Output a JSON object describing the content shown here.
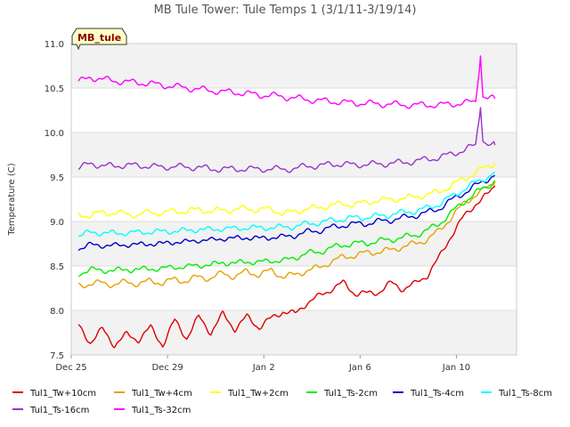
{
  "chart_data": {
    "type": "line",
    "title": "MB Tule Tower: Tule Temps 1 (3/1/11-3/19/14)",
    "ylabel": "Temperature (C)",
    "xlabel": "",
    "badge": "MB_tule",
    "ylim": [
      7.5,
      11.0
    ],
    "yticks": [
      7.5,
      8.0,
      8.5,
      9.0,
      9.5,
      10.0,
      10.5,
      11.0
    ],
    "ytick_labels": [
      "7.5",
      "8.0",
      "8.5",
      "9.0",
      "9.5",
      "10.0",
      "10.5",
      "11.0"
    ],
    "xlim_days": [
      0,
      18.5
    ],
    "xticks": [
      {
        "day": 0,
        "label": "Dec 25"
      },
      {
        "day": 4,
        "label": "Dec 29"
      },
      {
        "day": 8,
        "label": "Jan 2"
      },
      {
        "day": 12,
        "label": "Jan 6"
      },
      {
        "day": 16,
        "label": "Jan 10"
      }
    ],
    "grid": true,
    "legend_position": "bottom",
    "series": [
      {
        "name": "Tul1_Tw+10cm",
        "color": "#dd0000",
        "x": [
          0.3,
          0.8,
          1.3,
          1.8,
          2.3,
          2.8,
          3.3,
          3.8,
          4.3,
          4.8,
          5.3,
          5.8,
          6.3,
          6.8,
          7.3,
          7.8,
          8.3,
          8.8,
          9.3,
          9.8,
          10.3,
          10.8,
          11.3,
          11.8,
          12.3,
          12.8,
          13.3,
          13.8,
          14.3,
          14.8,
          15.3,
          15.8,
          16.3,
          16.8,
          17.3,
          17.6
        ],
        "y": [
          7.82,
          7.65,
          7.78,
          7.62,
          7.72,
          7.68,
          7.8,
          7.62,
          7.88,
          7.7,
          7.92,
          7.76,
          7.95,
          7.8,
          7.92,
          7.82,
          7.9,
          8.0,
          7.95,
          8.1,
          8.15,
          8.25,
          8.3,
          8.2,
          8.18,
          8.22,
          8.3,
          8.25,
          8.3,
          8.4,
          8.6,
          8.85,
          9.05,
          9.2,
          9.3,
          9.4
        ]
      },
      {
        "name": "Tul1_Tw+4cm",
        "color": "#e8a000",
        "x": [
          0.3,
          0.8,
          1.3,
          1.8,
          2.3,
          2.8,
          3.3,
          3.8,
          4.3,
          4.8,
          5.3,
          5.8,
          6.3,
          6.8,
          7.3,
          7.8,
          8.3,
          8.8,
          9.3,
          9.8,
          10.3,
          10.8,
          11.3,
          11.8,
          12.3,
          12.8,
          13.3,
          13.8,
          14.3,
          14.8,
          15.3,
          15.8,
          16.3,
          16.8,
          17.3,
          17.6
        ],
        "y": [
          8.28,
          8.3,
          8.31,
          8.29,
          8.32,
          8.3,
          8.33,
          8.31,
          8.35,
          8.33,
          8.38,
          8.36,
          8.42,
          8.38,
          8.44,
          8.4,
          8.45,
          8.38,
          8.4,
          8.45,
          8.48,
          8.55,
          8.6,
          8.62,
          8.65,
          8.66,
          8.68,
          8.72,
          8.75,
          8.8,
          8.9,
          9.05,
          9.2,
          9.3,
          9.38,
          9.45
        ]
      },
      {
        "name": "Tul1_Tw+2cm",
        "color": "#ffff00",
        "x": [
          0.3,
          0.8,
          1.3,
          1.8,
          2.3,
          2.8,
          3.3,
          3.8,
          4.3,
          4.8,
          5.3,
          5.8,
          6.3,
          6.8,
          7.3,
          7.8,
          8.3,
          8.8,
          9.3,
          9.8,
          10.3,
          10.8,
          11.3,
          11.8,
          12.3,
          12.8,
          13.3,
          13.8,
          14.3,
          14.8,
          15.3,
          15.8,
          16.3,
          16.8,
          17.3,
          17.6
        ],
        "y": [
          9.1,
          9.05,
          9.12,
          9.08,
          9.1,
          9.06,
          9.12,
          9.08,
          9.13,
          9.1,
          9.15,
          9.1,
          9.14,
          9.12,
          9.16,
          9.12,
          9.15,
          9.08,
          9.12,
          9.14,
          9.16,
          9.18,
          9.2,
          9.19,
          9.22,
          9.24,
          9.25,
          9.26,
          9.28,
          9.3,
          9.34,
          9.4,
          9.48,
          9.55,
          9.62,
          9.66
        ]
      },
      {
        "name": "Tul1_Ts-2cm",
        "color": "#00ee00",
        "x": [
          0.3,
          0.8,
          1.3,
          1.8,
          2.3,
          2.8,
          3.3,
          3.8,
          4.3,
          4.8,
          5.3,
          5.8,
          6.3,
          6.8,
          7.3,
          7.8,
          8.3,
          8.8,
          9.3,
          9.8,
          10.3,
          10.8,
          11.3,
          11.8,
          12.3,
          12.8,
          13.3,
          13.8,
          14.3,
          14.8,
          15.3,
          15.8,
          16.3,
          16.8,
          17.3,
          17.6
        ],
        "y": [
          8.42,
          8.45,
          8.46,
          8.44,
          8.47,
          8.45,
          8.48,
          8.46,
          8.5,
          8.48,
          8.52,
          8.5,
          8.55,
          8.52,
          8.56,
          8.53,
          8.57,
          8.55,
          8.6,
          8.64,
          8.66,
          8.7,
          8.74,
          8.75,
          8.76,
          8.78,
          8.8,
          8.82,
          8.85,
          8.9,
          8.98,
          9.1,
          9.22,
          9.32,
          9.4,
          9.46
        ]
      },
      {
        "name": "Tul1_Ts-4cm",
        "color": "#0000cc",
        "x": [
          0.3,
          0.8,
          1.3,
          1.8,
          2.3,
          2.8,
          3.3,
          3.8,
          4.3,
          4.8,
          5.3,
          5.8,
          6.3,
          6.8,
          7.3,
          7.8,
          8.3,
          8.8,
          9.3,
          9.8,
          10.3,
          10.8,
          11.3,
          11.8,
          12.3,
          12.8,
          13.3,
          13.8,
          14.3,
          14.8,
          15.3,
          15.8,
          16.3,
          16.8,
          17.3,
          17.6
        ],
        "y": [
          8.7,
          8.73,
          8.74,
          8.72,
          8.75,
          8.73,
          8.76,
          8.74,
          8.78,
          8.76,
          8.8,
          8.78,
          8.82,
          8.8,
          8.83,
          8.8,
          8.83,
          8.82,
          8.85,
          8.88,
          8.9,
          8.93,
          8.96,
          8.97,
          8.98,
          9.0,
          9.02,
          9.04,
          9.07,
          9.1,
          9.15,
          9.24,
          9.32,
          9.4,
          9.48,
          9.52
        ]
      },
      {
        "name": "Tul1_Ts-8cm",
        "color": "#00ffff",
        "x": [
          0.3,
          0.8,
          1.3,
          1.8,
          2.3,
          2.8,
          3.3,
          3.8,
          4.3,
          4.8,
          5.3,
          5.8,
          6.3,
          6.8,
          7.3,
          7.8,
          8.3,
          8.8,
          9.3,
          9.8,
          10.3,
          10.8,
          11.3,
          11.8,
          12.3,
          12.8,
          13.3,
          13.8,
          14.3,
          14.8,
          15.3,
          15.8,
          16.3,
          16.8,
          17.3,
          17.6
        ],
        "y": [
          8.85,
          8.87,
          8.88,
          8.86,
          8.88,
          8.87,
          8.89,
          8.88,
          8.9,
          8.89,
          8.92,
          8.9,
          8.93,
          8.91,
          8.94,
          8.92,
          8.94,
          8.93,
          8.95,
          8.97,
          8.99,
          9.01,
          9.03,
          9.04,
          9.05,
          9.06,
          9.08,
          9.1,
          9.12,
          9.15,
          9.2,
          9.28,
          9.36,
          9.44,
          9.5,
          9.55
        ]
      },
      {
        "name": "Tul1_Ts-16cm",
        "color": "#9933cc",
        "x": [
          0.3,
          0.8,
          1.3,
          1.8,
          2.3,
          2.8,
          3.3,
          3.8,
          4.3,
          4.8,
          5.3,
          5.8,
          6.3,
          6.8,
          7.3,
          7.8,
          8.3,
          8.8,
          9.3,
          9.8,
          10.3,
          10.8,
          11.3,
          11.8,
          12.3,
          12.8,
          13.3,
          13.8,
          14.3,
          14.8,
          15.3,
          15.8,
          16.3,
          16.8,
          17.0,
          17.1,
          17.3,
          17.6
        ],
        "y": [
          9.6,
          9.65,
          9.63,
          9.62,
          9.64,
          9.62,
          9.63,
          9.6,
          9.63,
          9.6,
          9.62,
          9.58,
          9.6,
          9.58,
          9.6,
          9.58,
          9.6,
          9.58,
          9.6,
          9.62,
          9.63,
          9.64,
          9.65,
          9.63,
          9.65,
          9.64,
          9.66,
          9.66,
          9.68,
          9.7,
          9.72,
          9.76,
          9.8,
          9.86,
          10.28,
          9.9,
          9.86,
          9.86
        ]
      },
      {
        "name": "Tul1_Ts-32cm",
        "color": "#ff00ff",
        "x": [
          0.3,
          0.8,
          1.3,
          1.8,
          2.3,
          2.8,
          3.3,
          3.8,
          4.3,
          4.8,
          5.3,
          5.8,
          6.3,
          6.8,
          7.3,
          7.8,
          8.3,
          8.8,
          9.3,
          9.8,
          10.3,
          10.8,
          11.3,
          11.8,
          12.3,
          12.8,
          13.3,
          13.8,
          14.3,
          14.8,
          15.3,
          15.8,
          16.3,
          16.8,
          17.0,
          17.1,
          17.3,
          17.6
        ],
        "y": [
          10.57,
          10.62,
          10.6,
          10.58,
          10.57,
          10.56,
          10.55,
          10.53,
          10.52,
          10.5,
          10.49,
          10.47,
          10.46,
          10.45,
          10.44,
          10.42,
          10.42,
          10.4,
          10.39,
          10.37,
          10.36,
          10.35,
          10.34,
          10.33,
          10.33,
          10.32,
          10.32,
          10.31,
          10.31,
          10.31,
          10.31,
          10.32,
          10.33,
          10.35,
          10.86,
          10.4,
          10.38,
          10.38
        ]
      }
    ]
  }
}
